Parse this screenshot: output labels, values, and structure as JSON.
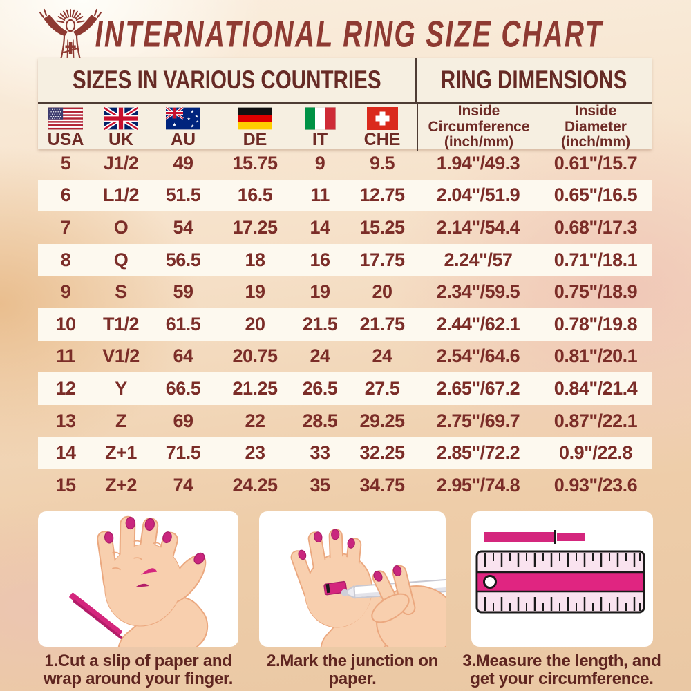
{
  "title": "INTERNATIONAL RING SIZE CHART",
  "chart_data": {
    "type": "table",
    "title": "INTERNATIONAL RING SIZE CHART",
    "section_headers": {
      "left": "SIZES IN VARIOUS COUNTRIES",
      "right": "RING DIMENSIONS"
    },
    "columns": [
      {
        "code": "USA",
        "flag": "usa-flag"
      },
      {
        "code": "UK",
        "flag": "uk-flag"
      },
      {
        "code": "AU",
        "flag": "australia-flag"
      },
      {
        "code": "DE",
        "flag": "germany-flag"
      },
      {
        "code": "IT",
        "flag": "italy-flag"
      },
      {
        "code": "CHE",
        "flag": "switzerland-flag"
      },
      {
        "label_lines": [
          "Inside",
          "Circumference",
          "(inch/mm)"
        ]
      },
      {
        "label_lines": [
          "Inside",
          "Diameter",
          "(inch/mm)"
        ]
      }
    ],
    "rows": [
      [
        "5",
        "J1/2",
        "49",
        "15.75",
        "9",
        "9.5",
        "1.94\"/49.3",
        "0.61\"/15.7"
      ],
      [
        "6",
        "L1/2",
        "51.5",
        "16.5",
        "11",
        "12.75",
        "2.04\"/51.9",
        "0.65\"/16.5"
      ],
      [
        "7",
        "O",
        "54",
        "17.25",
        "14",
        "15.25",
        "2.14\"/54.4",
        "0.68\"/17.3"
      ],
      [
        "8",
        "Q",
        "56.5",
        "18",
        "16",
        "17.75",
        "2.24\"/57",
        "0.71\"/18.1"
      ],
      [
        "9",
        "S",
        "59",
        "19",
        "19",
        "20",
        "2.34\"/59.5",
        "0.75\"/18.9"
      ],
      [
        "10",
        "T1/2",
        "61.5",
        "20",
        "21.5",
        "21.75",
        "2.44\"/62.1",
        "0.78\"/19.8"
      ],
      [
        "11",
        "V1/2",
        "64",
        "20.75",
        "24",
        "24",
        "2.54\"/64.6",
        "0.81\"/20.1"
      ],
      [
        "12",
        "Y",
        "66.5",
        "21.25",
        "26.5",
        "27.5",
        "2.65\"/67.2",
        "0.84\"/21.4"
      ],
      [
        "13",
        "Z",
        "69",
        "22",
        "28.5",
        "29.25",
        "2.75\"/69.7",
        "0.87\"/22.1"
      ],
      [
        "14",
        "Z+1",
        "71.5",
        "23",
        "33",
        "32.25",
        "2.85\"/72.2",
        "0.9\"/22.8"
      ],
      [
        "15",
        "Z+2",
        "74",
        "24.25",
        "35",
        "34.75",
        "2.95\"/74.8",
        "0.93\"/23.6"
      ]
    ]
  },
  "instructions": {
    "steps": [
      {
        "caption": "1.Cut a slip of paper and wrap around your finger.",
        "illustration": "hand-with-paper-strip"
      },
      {
        "caption": "2.Mark the junction on paper.",
        "illustration": "hands-marking-with-pen"
      },
      {
        "caption": "3.Measure the length, and get your circumference.",
        "illustration": "pink-ruler-measurement"
      }
    ]
  },
  "colors": {
    "title_red": "#8e3a32",
    "maroon_text": "#7b2d28",
    "header_text": "#6e2b26",
    "panel_cream": "#f6efe1",
    "row_white": "#fdf9ef",
    "divider_dark": "#4e3c34",
    "accent_magenta": "#d4267d",
    "skin": "#f8cfae"
  }
}
